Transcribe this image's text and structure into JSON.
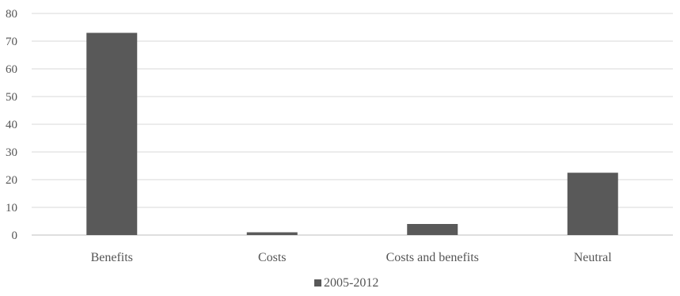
{
  "chart_data": {
    "type": "bar",
    "title": "",
    "xlabel": "",
    "ylabel": "",
    "categories": [
      "Benefits",
      "Costs",
      "Costs and benefits",
      "Neutral"
    ],
    "series": [
      {
        "name": "2005-2012",
        "values": [
          73,
          1,
          4,
          22.5
        ],
        "color": "#595959"
      }
    ],
    "ylim": [
      0,
      80
    ],
    "yticks": [
      "0",
      "10",
      "20",
      "30",
      "40",
      "50",
      "60",
      "70",
      "80"
    ],
    "grid": true,
    "legend_position": "bottom",
    "colors": {
      "bar": "#595959",
      "grid": "#d9d9d9",
      "axis": "#bfbfbf",
      "text": "#555555"
    }
  }
}
